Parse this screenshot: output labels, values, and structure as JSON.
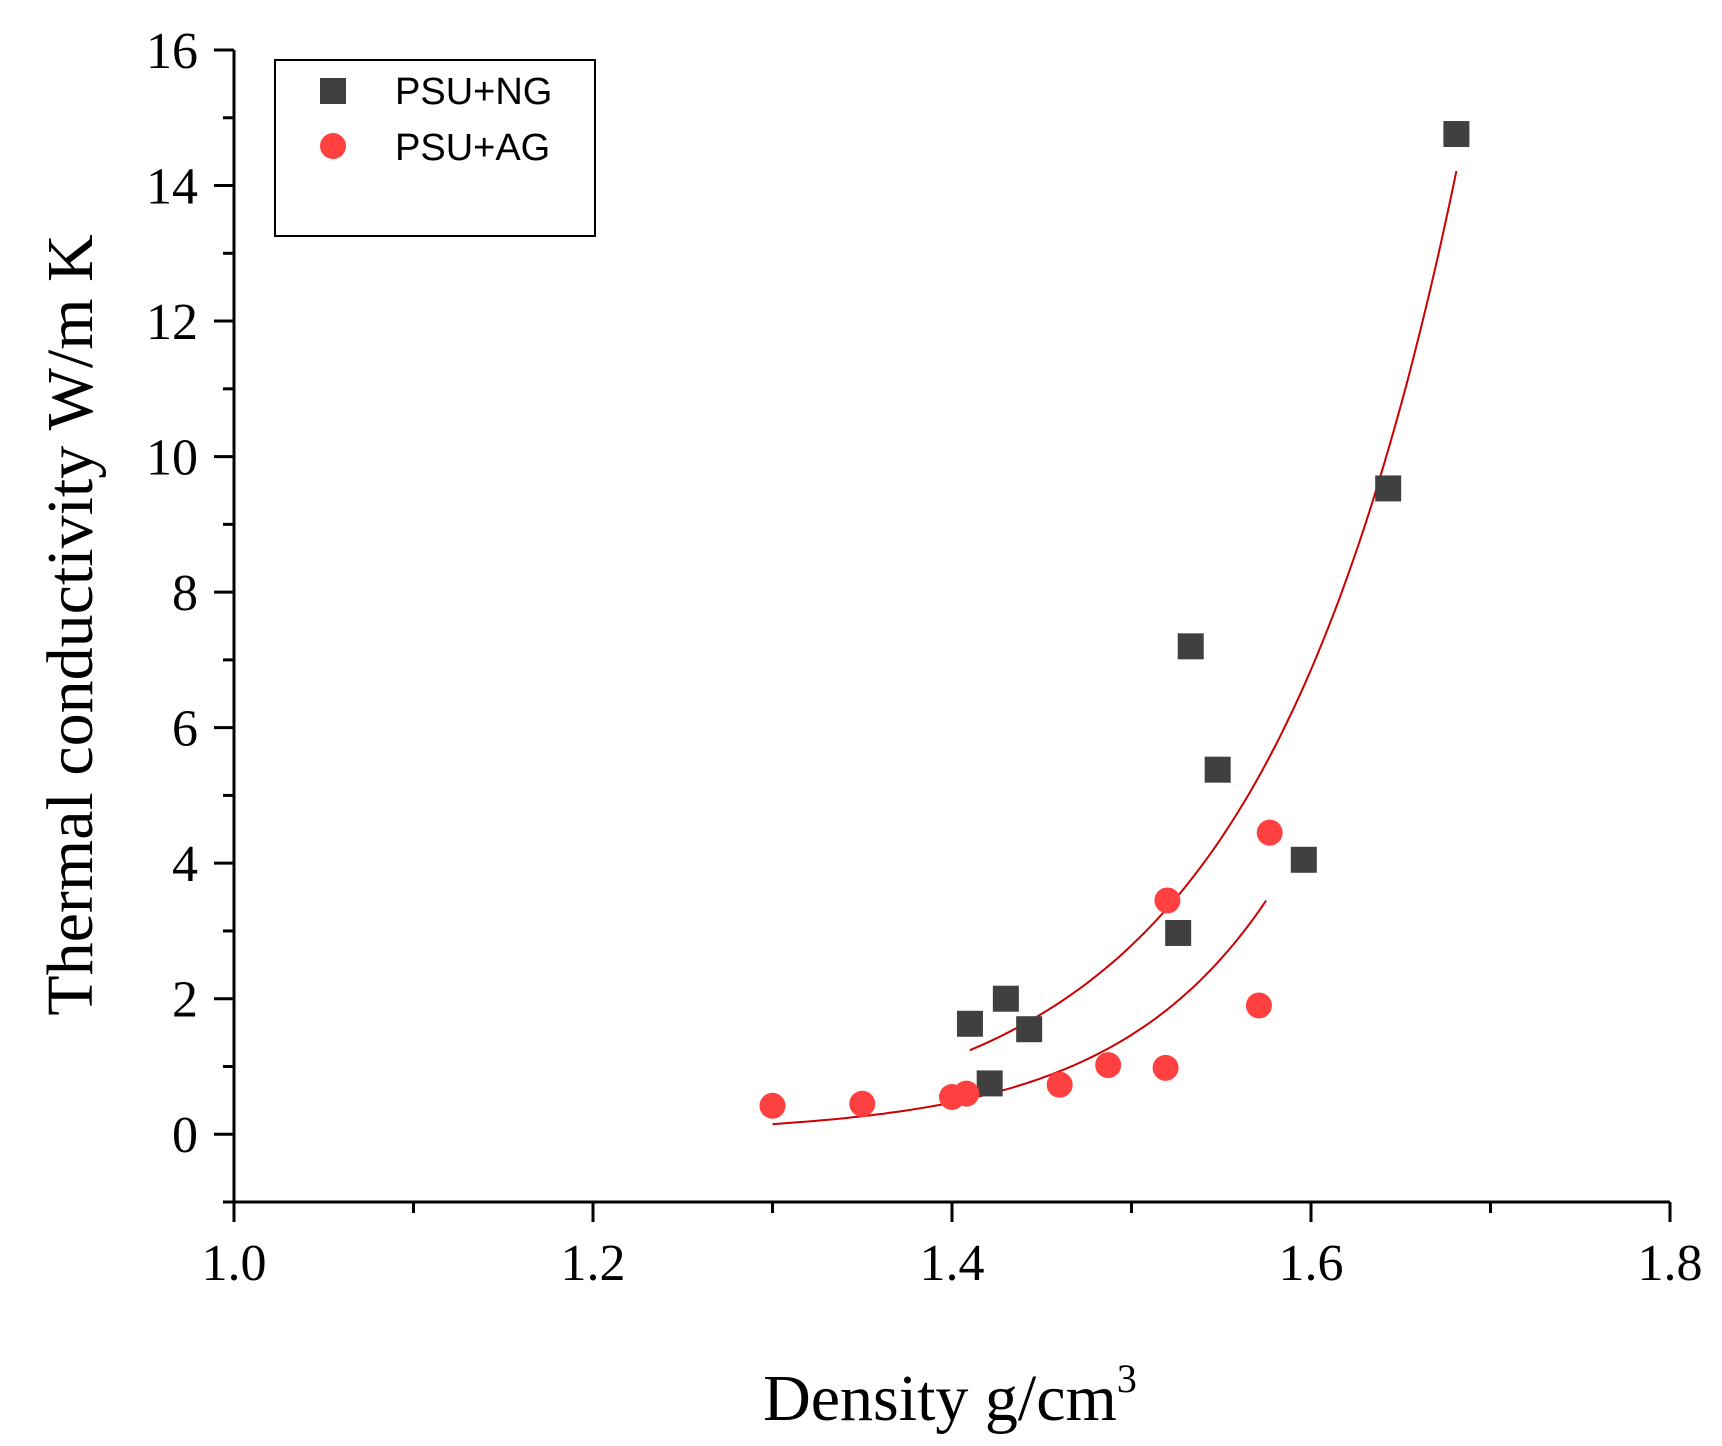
{
  "chart_data": {
    "type": "scatter",
    "title": "",
    "xlabel": "Density g/cm",
    "xlabel_superscript": "3",
    "ylabel": "Thermal conductivity W/m K",
    "xlim": [
      1.0,
      1.8
    ],
    "ylim": [
      -1,
      16
    ],
    "x_ticks": [
      1.0,
      1.2,
      1.4,
      1.6,
      1.8
    ],
    "x_tick_labels": [
      "1.0",
      "1.2",
      "1.4",
      "1.6",
      "1.8"
    ],
    "y_ticks": [
      0,
      2,
      4,
      6,
      8,
      10,
      12,
      14,
      16
    ],
    "y_tick_labels": [
      "0",
      "2",
      "4",
      "6",
      "8",
      "10",
      "12",
      "14",
      "16"
    ],
    "grid": false,
    "legend_position": "top-left",
    "series": [
      {
        "name": "PSU+NG",
        "marker": "square",
        "color": "#404040",
        "x": [
          1.41,
          1.421,
          1.43,
          1.443,
          1.526,
          1.533,
          1.548,
          1.596,
          1.643,
          1.681
        ],
        "y": [
          1.63,
          0.75,
          2.0,
          1.55,
          2.97,
          7.2,
          5.38,
          4.05,
          9.53,
          14.76
        ]
      },
      {
        "name": "PSU+AG",
        "marker": "circle",
        "color": "#ff4040",
        "x": [
          1.3,
          1.35,
          1.4,
          1.408,
          1.46,
          1.487,
          1.519,
          1.52,
          1.571,
          1.577
        ],
        "y": [
          0.42,
          0.45,
          0.55,
          0.6,
          0.73,
          1.02,
          0.98,
          3.45,
          1.9,
          4.45
        ]
      }
    ],
    "fit_lines": [
      {
        "name": "PSU+NG fit",
        "color": "#cc0000",
        "x_range": [
          1.41,
          1.681
        ],
        "a": 1.24,
        "x0": 1.41,
        "b": 9.0
      },
      {
        "name": "PSU+AG fit",
        "color": "#cc0000",
        "x_range": [
          1.3,
          1.575
        ],
        "a": 0.15,
        "x0": 1.3,
        "b": 11.4
      }
    ]
  }
}
